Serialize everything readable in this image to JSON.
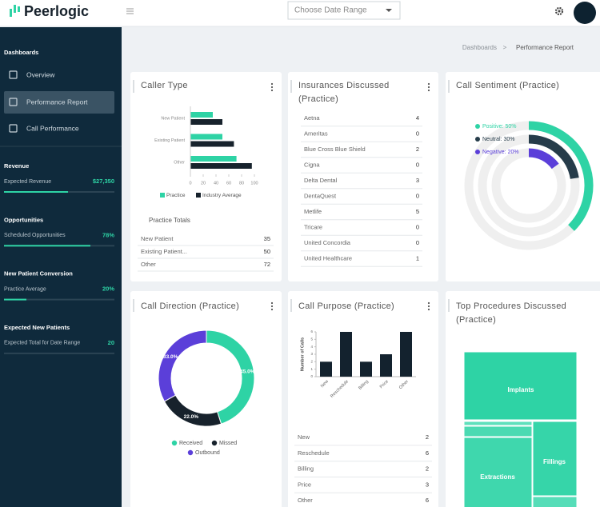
{
  "header": {
    "logo": "Peerlogic",
    "date_range": "Choose Date Range"
  },
  "breadcrumb": {
    "items": [
      "Dashboards",
      "Performance Report"
    ],
    "separator": ">"
  },
  "sidebar": {
    "section": "Dashboards",
    "nav": [
      "Overview",
      "Performance Report",
      "Call Performance"
    ],
    "active": 1,
    "metrics": [
      {
        "heading": "Revenue",
        "label": "Expected Revenue",
        "value": "$27,350"
      },
      {
        "heading": "Opportunities",
        "label": "Scheduled Opportunities",
        "value": "78%"
      },
      {
        "heading": "New Patient Conversion",
        "label": "Practice Average",
        "value": "20%"
      },
      {
        "heading": "Expected New Patients",
        "label": "Expected Total for Date Range",
        "value": "20"
      }
    ]
  },
  "chart_data": [
    {
      "type": "hbar",
      "title": "Caller Type",
      "categories": [
        "New Patient",
        "Existing Patient",
        "Other"
      ],
      "series": [
        {
          "name": "Practice",
          "color": "#2ed3a5",
          "values": [
            35,
            50,
            72
          ]
        },
        {
          "name": "Industry Average",
          "color": "#17222c",
          "values": [
            50,
            68,
            96
          ]
        }
      ],
      "xlim": [
        0,
        100
      ],
      "xticks": [
        0,
        20,
        40,
        60,
        80,
        100
      ],
      "table": {
        "title": "Practice Totals",
        "rows": [
          [
            "New Patient",
            35
          ],
          [
            "Existing Patient...",
            50
          ],
          [
            "Other",
            72
          ]
        ]
      }
    },
    {
      "type": "radial",
      "title": "Call Sentiment (Practice)",
      "categories": [
        "Positive:",
        "Neutral:",
        "Negative:"
      ],
      "values": [
        50,
        30,
        20
      ],
      "value_labels": [
        "50%",
        "30%",
        "20%"
      ],
      "colors": [
        "#2ed3a5",
        "#263c4a",
        "#5b3fd9"
      ]
    },
    {
      "type": "donut",
      "title": "Call Direction (Practice)",
      "categories": [
        "Received",
        "Missed",
        "Outbound"
      ],
      "values": [
        45.0,
        22.0,
        33.0
      ],
      "value_labels": [
        "45.0%",
        "22.0%",
        "33.0%"
      ],
      "colors": [
        "#2ed3a5",
        "#17222c",
        "#5b3fd9"
      ]
    },
    {
      "type": "bar",
      "title": "Call Purpose (Practice)",
      "categories": [
        "New",
        "Reschedule",
        "Billing",
        "Price",
        "Other"
      ],
      "values": [
        2,
        6,
        2,
        3,
        6
      ],
      "color": "#13222e",
      "ylim": [
        0,
        6
      ],
      "yticks": [
        0,
        1,
        2,
        3,
        4,
        5,
        6
      ],
      "ylabel": "Number of Calls",
      "table": {
        "rows": [
          [
            "New",
            2
          ],
          [
            "Reschedule",
            6
          ],
          [
            "Billing",
            2
          ],
          [
            "Price",
            3
          ],
          [
            "Other",
            6
          ]
        ]
      }
    }
  ],
  "insurances": {
    "title": "Insurances Discussed (Practice)",
    "rows": [
      [
        "Aetna",
        4
      ],
      [
        "Ameritas",
        0
      ],
      [
        "Blue Cross Blue Shield",
        2
      ],
      [
        "Cigna",
        0
      ],
      [
        "Delta Dental",
        3
      ],
      [
        "DentaQuest",
        0
      ],
      [
        "Metlife",
        5
      ],
      [
        "Tricare",
        0
      ],
      [
        "United Concordia",
        0
      ],
      [
        "United Healthcare",
        1
      ]
    ]
  },
  "top_procedures": {
    "title": "Top Procedures Discussed (Practice)",
    "labels": [
      "Implants",
      "Extractions",
      "Fillings"
    ]
  }
}
